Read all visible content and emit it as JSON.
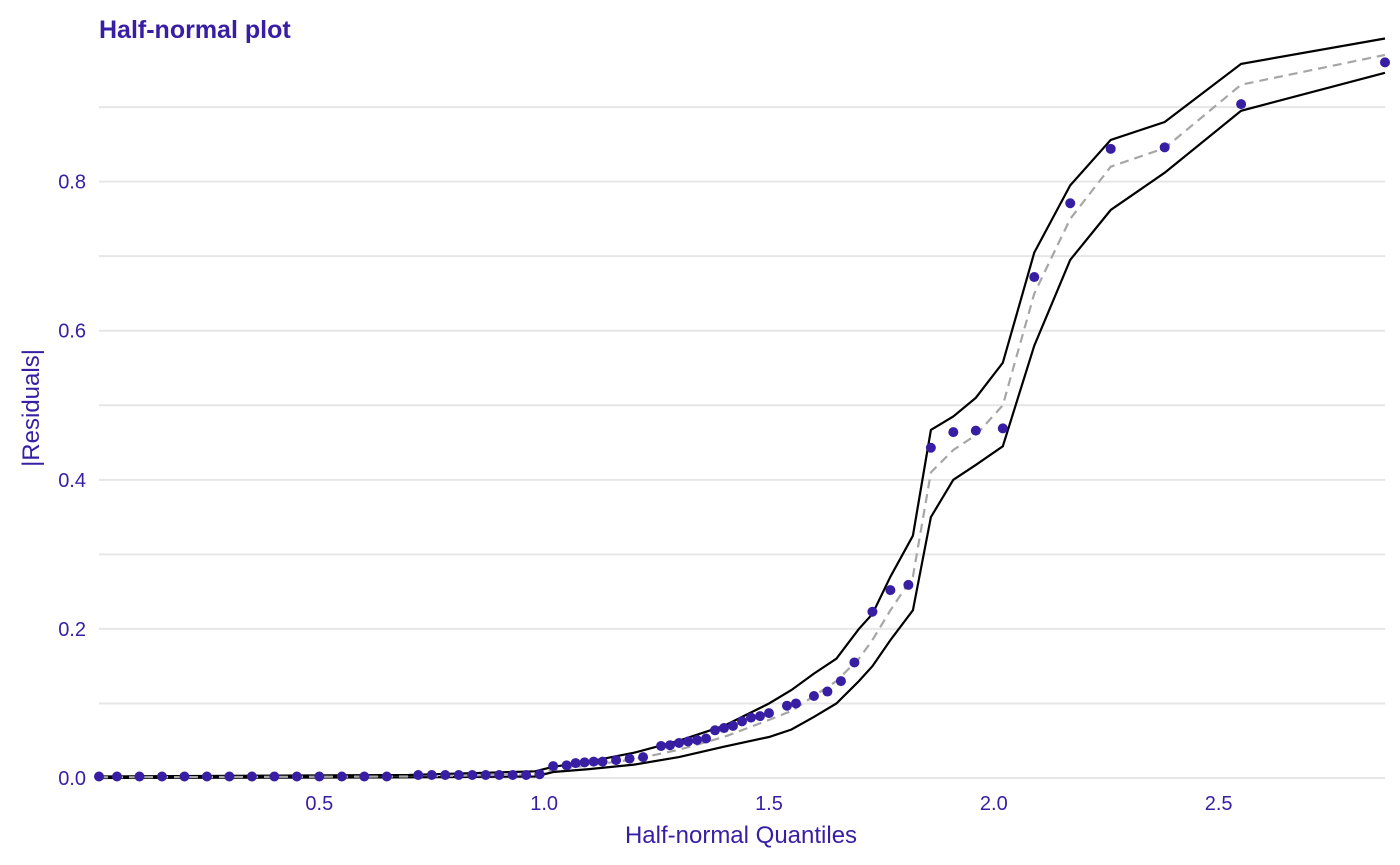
{
  "chart_data": {
    "type": "scatter",
    "title": "Half-normal plot",
    "xlabel": "Half-normal Quantiles",
    "ylabel": "|Residuals|",
    "xlim": [
      0.01,
      2.87
    ],
    "ylim": [
      0,
      0.99
    ],
    "x_ticks": [
      0.5,
      1.0,
      1.5,
      2.0,
      2.5
    ],
    "x_tick_labels": [
      "0.5",
      "1.0",
      "1.5",
      "2.0",
      "2.5"
    ],
    "y_ticks": [
      0.0,
      0.2,
      0.4,
      0.6,
      0.8
    ],
    "y_tick_labels": [
      "0.0",
      "0.2",
      "0.4",
      "0.6",
      "0.8"
    ],
    "y_minor_ticks": [
      0.1,
      0.3,
      0.5,
      0.7,
      0.9
    ],
    "grid": "horizontal",
    "legend": "none",
    "colors": {
      "points": "#371ea3",
      "text": "#371ea3",
      "envelope": "#000000",
      "median": "#a6a6a6",
      "grid": "#e6e6e6"
    },
    "points": {
      "x": [
        0.01,
        0.05,
        0.1,
        0.15,
        0.2,
        0.25,
        0.3,
        0.35,
        0.4,
        0.45,
        0.5,
        0.55,
        0.6,
        0.65,
        0.72,
        0.75,
        0.78,
        0.81,
        0.84,
        0.87,
        0.9,
        0.93,
        0.96,
        0.99,
        1.02,
        1.05,
        1.07,
        1.09,
        1.11,
        1.13,
        1.16,
        1.19,
        1.22,
        1.26,
        1.28,
        1.3,
        1.32,
        1.34,
        1.36,
        1.38,
        1.4,
        1.42,
        1.44,
        1.46,
        1.48,
        1.5,
        1.54,
        1.56,
        1.6,
        1.63,
        1.66,
        1.69,
        1.73,
        1.77,
        1.81,
        1.86,
        1.91,
        1.96,
        2.02,
        2.09,
        2.17,
        2.26,
        2.38,
        2.55,
        2.87
      ],
      "y": [
        0.002,
        0.002,
        0.002,
        0.002,
        0.002,
        0.002,
        0.002,
        0.002,
        0.002,
        0.002,
        0.002,
        0.002,
        0.002,
        0.002,
        0.004,
        0.004,
        0.004,
        0.004,
        0.004,
        0.004,
        0.004,
        0.004,
        0.004,
        0.005,
        0.016,
        0.017,
        0.02,
        0.021,
        0.022,
        0.022,
        0.024,
        0.026,
        0.028,
        0.043,
        0.044,
        0.047,
        0.049,
        0.051,
        0.053,
        0.064,
        0.067,
        0.07,
        0.076,
        0.081,
        0.083,
        0.087,
        0.097,
        0.1,
        0.11,
        0.116,
        0.13,
        0.155,
        0.223,
        0.252,
        0.259,
        0.443,
        0.464,
        0.466,
        0.469,
        0.672,
        0.771,
        0.844,
        0.846,
        0.904,
        0.96
      ]
    },
    "envelope_upper": {
      "x": [
        0.01,
        0.7,
        0.98,
        1.02,
        1.1,
        1.2,
        1.3,
        1.4,
        1.5,
        1.55,
        1.6,
        1.65,
        1.7,
        1.73,
        1.77,
        1.82,
        1.86,
        1.91,
        1.96,
        2.02,
        2.09,
        2.17,
        2.26,
        2.38,
        2.55,
        2.87
      ],
      "y": [
        0.002,
        0.004,
        0.009,
        0.015,
        0.022,
        0.034,
        0.05,
        0.07,
        0.1,
        0.118,
        0.14,
        0.16,
        0.2,
        0.22,
        0.27,
        0.325,
        0.467,
        0.485,
        0.51,
        0.557,
        0.705,
        0.795,
        0.856,
        0.88,
        0.958,
        0.992
      ]
    },
    "envelope_lower": {
      "x": [
        0.01,
        0.7,
        0.98,
        1.02,
        1.1,
        1.2,
        1.3,
        1.4,
        1.5,
        1.55,
        1.6,
        1.65,
        1.7,
        1.73,
        1.77,
        1.82,
        1.86,
        1.91,
        1.96,
        2.02,
        2.09,
        2.17,
        2.26,
        2.38,
        2.55,
        2.87
      ],
      "y": [
        0.0,
        0.001,
        0.002,
        0.008,
        0.012,
        0.018,
        0.028,
        0.042,
        0.055,
        0.065,
        0.082,
        0.1,
        0.13,
        0.15,
        0.185,
        0.225,
        0.35,
        0.4,
        0.42,
        0.445,
        0.58,
        0.695,
        0.762,
        0.812,
        0.895,
        0.946
      ]
    },
    "envelope_median": {
      "x": [
        0.01,
        0.7,
        0.98,
        1.02,
        1.1,
        1.2,
        1.3,
        1.4,
        1.5,
        1.55,
        1.6,
        1.65,
        1.7,
        1.73,
        1.77,
        1.82,
        1.86,
        1.91,
        1.96,
        2.02,
        2.09,
        2.17,
        2.26,
        2.38,
        2.55,
        2.87
      ],
      "y": [
        0.001,
        0.002,
        0.005,
        0.011,
        0.017,
        0.025,
        0.038,
        0.055,
        0.078,
        0.09,
        0.11,
        0.13,
        0.16,
        0.185,
        0.225,
        0.27,
        0.41,
        0.44,
        0.46,
        0.5,
        0.65,
        0.75,
        0.82,
        0.845,
        0.93,
        0.97
      ]
    }
  }
}
